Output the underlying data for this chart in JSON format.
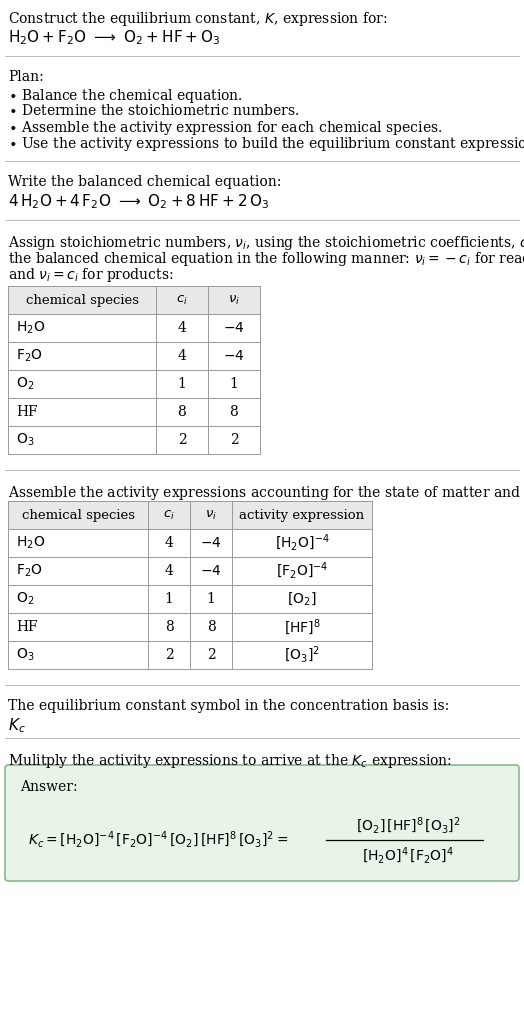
{
  "bg_color": "#ffffff",
  "table_header_bg": "#e8e8e8",
  "table_row_bg": "#ffffff",
  "answer_box_bg": "#e8f4e8",
  "answer_box_border": "#8ab88a",
  "divider_color": "#bbbbbb",
  "text_color": "#000000",
  "font_size": 10.0,
  "small_font": 9.5,
  "sec1_line1": "Construct the equilibrium constant, $K$, expression for:",
  "sec1_line2_parts": [
    "$\\mathrm{H_2O}$",
    " + ",
    "$\\mathrm{F_2O}$",
    "  $\\longrightarrow$  ",
    "$\\mathrm{O_2}$",
    " + HF + ",
    "$\\mathrm{O_3}$"
  ],
  "sec2_header": "Plan:",
  "sec2_bullets": [
    "$\\bullet$ Balance the chemical equation.",
    "$\\bullet$ Determine the stoichiometric numbers.",
    "$\\bullet$ Assemble the activity expression for each chemical species.",
    "$\\bullet$ Use the activity expressions to build the equilibrium constant expression."
  ],
  "sec3_header": "Write the balanced chemical equation:",
  "sec3_eq": "$4\\,\\mathrm{H_2O} + 4\\,\\mathrm{F_2O}\\;\\longrightarrow\\;\\mathrm{O_2} + 8\\,\\mathrm{HF} + 2\\,\\mathrm{O_3}$",
  "sec4_text": [
    "Assign stoichiometric numbers, $\\nu_i$, using the stoichiometric coefficients, $c_i$, from",
    "the balanced chemical equation in the following manner: $\\nu_i = -c_i$ for reactants",
    "and $\\nu_i = c_i$ for products:"
  ],
  "table1_rows": [
    [
      "$\\mathrm{H_2O}$",
      "4",
      "$-4$"
    ],
    [
      "$\\mathrm{F_2O}$",
      "4",
      "$-4$"
    ],
    [
      "$\\mathrm{O_2}$",
      "1",
      "1"
    ],
    [
      "HF",
      "8",
      "8"
    ],
    [
      "$\\mathrm{O_3}$",
      "2",
      "2"
    ]
  ],
  "sec5_text": "Assemble the activity expressions accounting for the state of matter and $\\nu_i$:",
  "table2_rows": [
    [
      "$\\mathrm{H_2O}$",
      "4",
      "$-4$",
      "$[\\mathrm{H_2O}]^{-4}$"
    ],
    [
      "$\\mathrm{F_2O}$",
      "4",
      "$-4$",
      "$[\\mathrm{F_2O}]^{-4}$"
    ],
    [
      "$\\mathrm{O_2}$",
      "1",
      "1",
      "$[\\mathrm{O_2}]$"
    ],
    [
      "HF",
      "8",
      "8",
      "$[\\mathrm{HF}]^{8}$"
    ],
    [
      "$\\mathrm{O_3}$",
      "2",
      "2",
      "$[\\mathrm{O_3}]^{2}$"
    ]
  ],
  "sec6_text": "The equilibrium constant symbol in the concentration basis is:",
  "sec6_symbol": "$K_c$",
  "sec7_text": "Mulitply the activity expressions to arrive at the $K_c$ expression:",
  "answer_label": "Answer:",
  "answer_eq_left": "$K_c = [\\mathrm{H_2O}]^{-4}\\,[\\mathrm{F_2O}]^{-4}\\,[\\mathrm{O_2}]\\,[\\mathrm{HF}]^{8}\\,[\\mathrm{O_3}]^{2} = $",
  "answer_eq_frac_num": "$[\\mathrm{O_2}]\\,[\\mathrm{HF}]^{8}\\,[\\mathrm{O_3}]^{2}$",
  "answer_eq_frac_den": "$[\\mathrm{H_2O}]^{4}\\,[\\mathrm{F_2O}]^{4}$"
}
